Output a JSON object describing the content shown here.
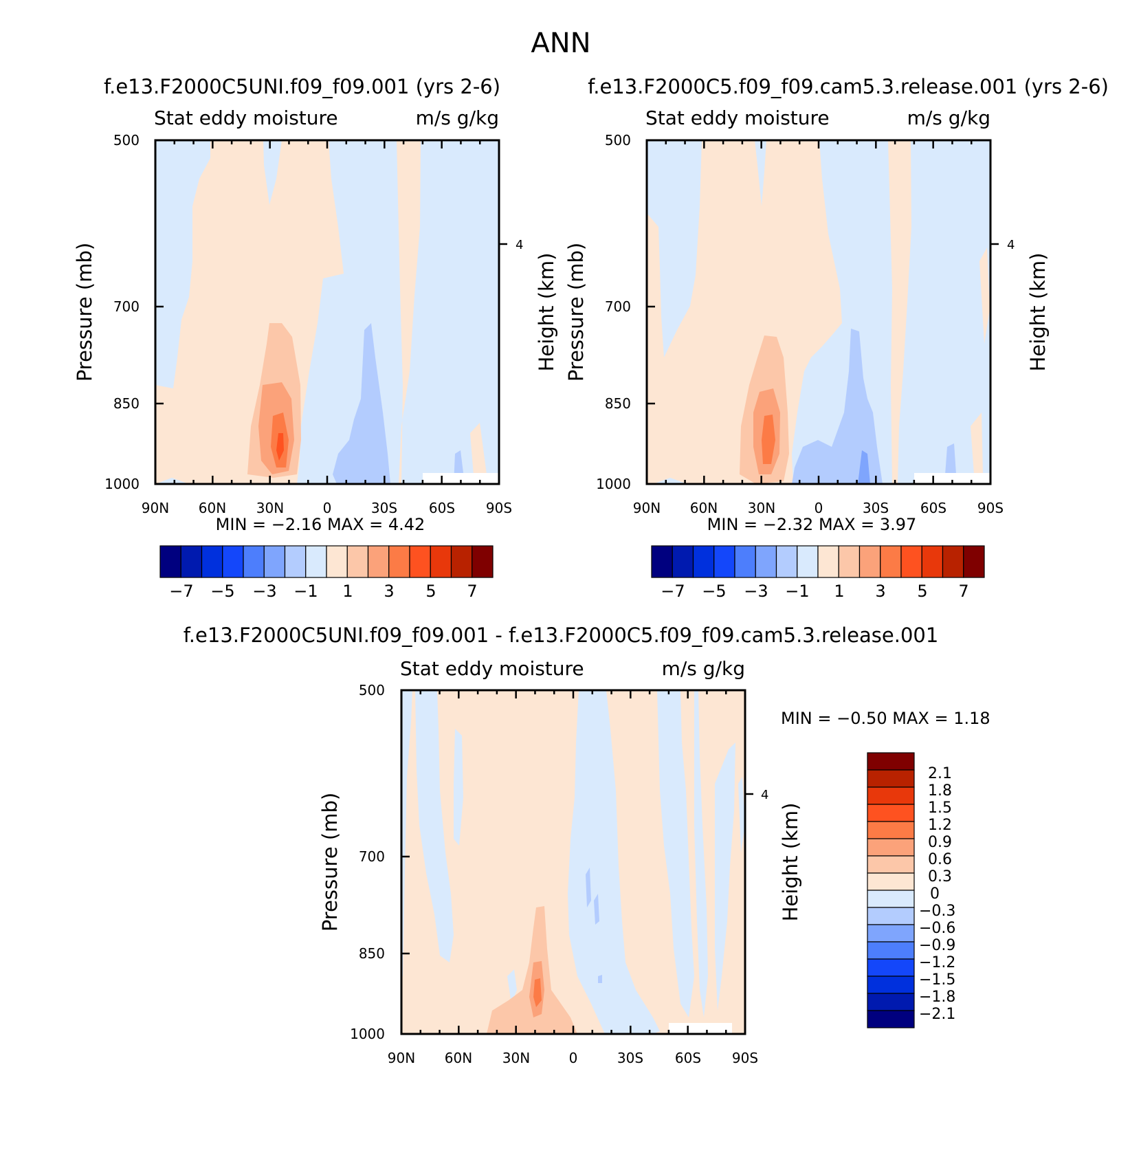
{
  "title": "ANN",
  "panels": [
    {
      "title": "f.e13.F2000C5UNI.f09_f09.001 (yrs 2-6)",
      "left_label": "Stat eddy moisture",
      "right_label": "m/s g/kg",
      "minmax": "MIN = −2.16 MAX = 4.42"
    },
    {
      "title": "f.e13.F2000C5.f09_f09.cam5.3.release.001 (yrs 2-6)",
      "left_label": "Stat eddy moisture",
      "right_label": "m/s g/kg",
      "minmax": "MIN = −2.32 MAX = 3.97"
    },
    {
      "title": "f.e13.F2000C5UNI.f09_f09.001 - f.e13.F2000C5.f09_f09.cam5.3.release.001",
      "left_label": "Stat eddy moisture",
      "right_label": "m/s g/kg",
      "minmax": "MIN = −0.50 MAX = 1.18"
    }
  ],
  "axes": {
    "ylabel": "Pressure (mb)",
    "y2label": "Height (km)",
    "x_ticks": [
      "90N",
      "60N",
      "30N",
      "0",
      "30S",
      "60S",
      "90S"
    ],
    "y_ticks": [
      "500",
      "700",
      "850",
      "1000"
    ],
    "y2_ticks": [
      "4"
    ]
  },
  "colorbar_main": {
    "labels": [
      "−7",
      "−5",
      "−3",
      "−1",
      "1",
      "3",
      "5",
      "7"
    ],
    "colors": [
      "#00007f",
      "#001aaf",
      "#0030dd",
      "#1447fa",
      "#4d7efc",
      "#7fa5fd",
      "#b3ccfe",
      "#d9eafd",
      "#fde6d3",
      "#fcc7a9",
      "#fba27a",
      "#fc7b46",
      "#fe5220",
      "#e8380b",
      "#b82200",
      "#7f0000"
    ]
  },
  "colorbar_diff": {
    "labels": [
      "2.1",
      "1.8",
      "1.5",
      "1.2",
      "0.9",
      "0.6",
      "0.3",
      "0",
      "−0.3",
      "−0.6",
      "−0.9",
      "−1.2",
      "−1.5",
      "−1.8",
      "−2.1"
    ],
    "colors": [
      "#7f0000",
      "#b82200",
      "#e8380b",
      "#fe5220",
      "#fc7b46",
      "#fba27a",
      "#fcc7a9",
      "#fde6d3",
      "#d9eafd",
      "#b3ccfe",
      "#7fa5fd",
      "#4d7efc",
      "#1447fa",
      "#0030dd",
      "#001aaf",
      "#00007f"
    ]
  },
  "chart_data": [
    {
      "type": "heatmap",
      "title": "f.e13.F2000C5UNI.f09_f09.001 (yrs 2-6)",
      "x": [
        "90N",
        "60N",
        "30N",
        "0",
        "30S",
        "60S",
        "90S"
      ],
      "y": [
        500,
        700,
        850,
        1000
      ],
      "zmin": -2.16,
      "zmax": 4.42,
      "xlabel": "",
      "ylabel": "Pressure (mb)"
    },
    {
      "type": "heatmap",
      "title": "f.e13.F2000C5.f09_f09.cam5.3.release.001 (yrs 2-6)",
      "x": [
        "90N",
        "60N",
        "30N",
        "0",
        "30S",
        "60S",
        "90S"
      ],
      "y": [
        500,
        700,
        850,
        1000
      ],
      "zmin": -2.32,
      "zmax": 3.97,
      "xlabel": "",
      "ylabel": "Pressure (mb)"
    },
    {
      "type": "heatmap",
      "title": "f.e13.F2000C5UNI.f09_f09.001 - f.e13.F2000C5.f09_f09.cam5.3.release.001",
      "x": [
        "90N",
        "60N",
        "30N",
        "0",
        "30S",
        "60S",
        "90S"
      ],
      "y": [
        500,
        700,
        850,
        1000
      ],
      "zmin": -0.5,
      "zmax": 1.18,
      "xlabel": "",
      "ylabel": "Pressure (mb)"
    }
  ]
}
